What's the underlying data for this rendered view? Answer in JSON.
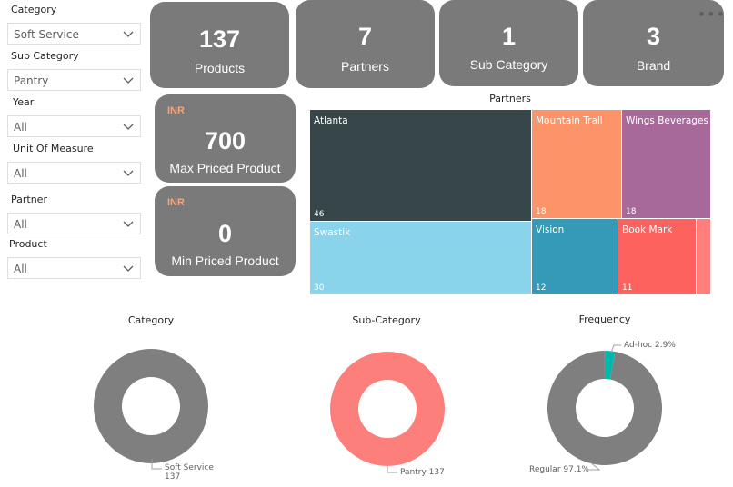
{
  "slicers": [
    {
      "label": "Category",
      "value": "Soft Service"
    },
    {
      "label": "Sub Category",
      "value": "Pantry"
    },
    {
      "label": "Year",
      "value": "All"
    },
    {
      "label": "Unit Of Measure",
      "value": "All"
    },
    {
      "label": "Partner",
      "value": "All"
    },
    {
      "label": "Product",
      "value": "All"
    }
  ],
  "cards": {
    "products": {
      "value": "137",
      "label": "Products"
    },
    "partners": {
      "value": "7",
      "label": "Partners"
    },
    "subcategory": {
      "value": "1",
      "label": "Sub Category"
    },
    "brand": {
      "value": "3",
      "label": "Brand"
    },
    "max_price": {
      "currency": "INR",
      "value": "700",
      "label": "Max Priced Product"
    },
    "min_price": {
      "currency": "INR",
      "value": "0",
      "label": "Min Priced Product"
    }
  },
  "more_options_icon": "ellipsis-icon",
  "treemap": {
    "title": "Partners",
    "tiles": [
      {
        "name": "Atlanta",
        "value": "46",
        "color": "#374649"
      },
      {
        "name": "Mountain Trail",
        "value": "18",
        "color": "#FD9469"
      },
      {
        "name": "Wings Beverages",
        "value": "18",
        "color": "#A66999"
      },
      {
        "name": "Swastik",
        "value": "30",
        "color": "#8AD4EB"
      },
      {
        "name": "Vision",
        "value": "12",
        "color": "#3599B8"
      },
      {
        "name": "Book Mark",
        "value": "11",
        "color": "#FD625E"
      },
      {
        "name": "",
        "value": "",
        "color": "#FE7F7C"
      }
    ]
  },
  "donuts": {
    "category": {
      "title": "Category",
      "label_name": "Soft Service",
      "label_value": "137"
    },
    "subcategory": {
      "title": "Sub-Category",
      "label": "Pantry 137"
    },
    "frequency": {
      "title": "Frequency",
      "label_adhoc": "Ad-hoc 2.9%",
      "label_regular": "Regular 97.1%"
    }
  },
  "chart_data": [
    {
      "type": "pie",
      "title": "Category",
      "categories": [
        "Soft Service"
      ],
      "values": [
        137
      ],
      "colors": [
        "#7F7F7F"
      ]
    },
    {
      "type": "pie",
      "title": "Sub-Category",
      "categories": [
        "Pantry"
      ],
      "values": [
        137
      ],
      "colors": [
        "#FD7F7C"
      ]
    },
    {
      "type": "pie",
      "title": "Frequency",
      "categories": [
        "Regular",
        "Ad-hoc"
      ],
      "values": [
        97.1,
        2.9
      ],
      "colors": [
        "#7F7F7F",
        "#01B8AA"
      ]
    },
    {
      "type": "heatmap",
      "title": "Partners",
      "categories": [
        "Atlanta",
        "Swastik",
        "Mountain Trail",
        "Wings Beverages",
        "Vision",
        "Book Mark"
      ],
      "values": [
        46,
        30,
        18,
        18,
        12,
        11
      ]
    }
  ]
}
